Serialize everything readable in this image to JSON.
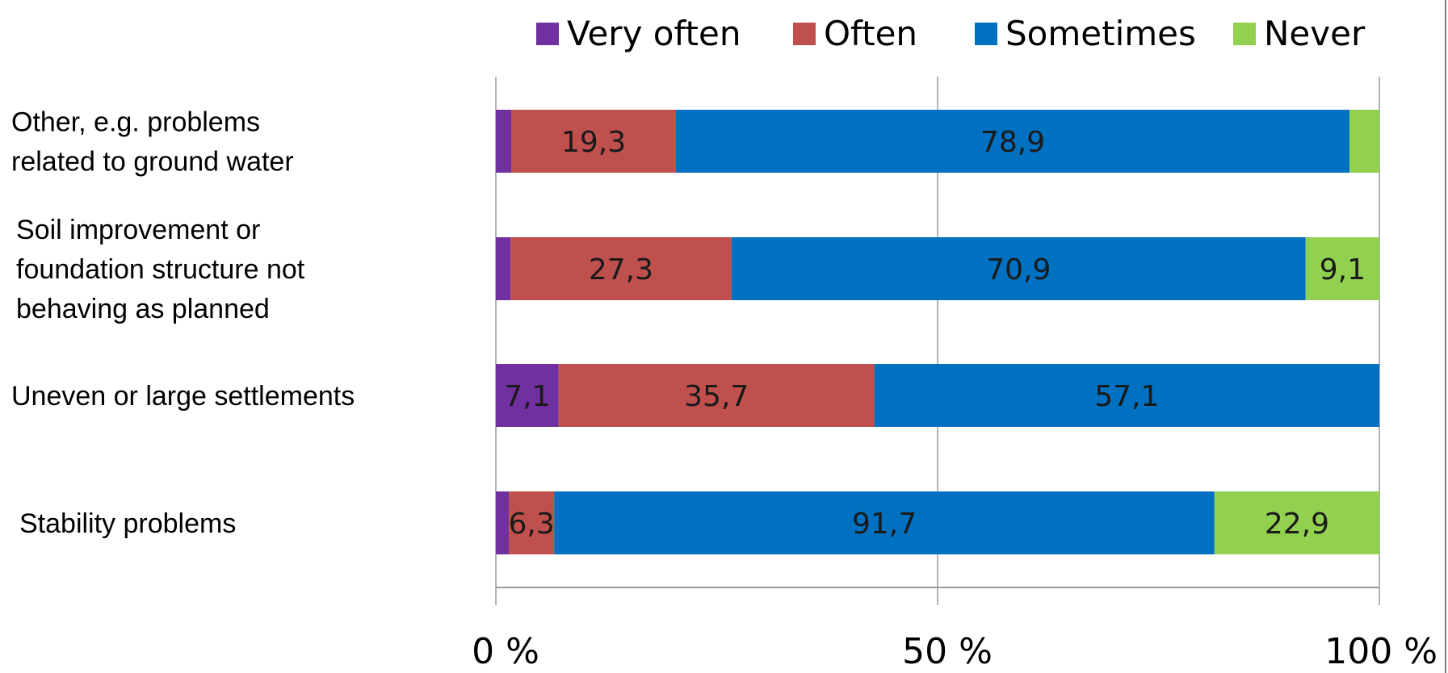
{
  "chart_data": {
    "type": "bar",
    "orientation": "horizontal",
    "stacked": "percent",
    "categories": [
      [
        "Other, e.g. problems",
        "related to ground water"
      ],
      [
        "Soil improvement or",
        "foundation structure not",
        "behaving as planned"
      ],
      [
        "Uneven or large settlements"
      ],
      [
        "Stability problems"
      ]
    ],
    "series": [
      {
        "name": "Very often",
        "color": "#7030a0",
        "values": [
          1.8,
          1.8,
          7.1,
          1.8
        ],
        "labels": [
          "",
          "",
          "7,1",
          ""
        ]
      },
      {
        "name": "Often",
        "color": "#c0504d",
        "values": [
          19.3,
          27.3,
          35.7,
          6.3
        ],
        "labels": [
          "19,3",
          "27,3",
          "35,7",
          "6,3"
        ]
      },
      {
        "name": "Sometimes",
        "color": "#0070c0",
        "values": [
          78.9,
          70.9,
          57.1,
          91.7
        ],
        "labels": [
          "78,9",
          "70,9",
          "57,1",
          "91,7"
        ]
      },
      {
        "name": "Never",
        "color": "#92d050",
        "values": [
          3.5,
          9.1,
          0,
          22.9
        ],
        "labels": [
          "",
          "9,1",
          "",
          "22,9"
        ]
      }
    ],
    "xlim": [
      0,
      100
    ],
    "x_ticks": [
      "0 %",
      "50 %",
      "100 %"
    ],
    "grid": true,
    "legend_position": "top"
  }
}
